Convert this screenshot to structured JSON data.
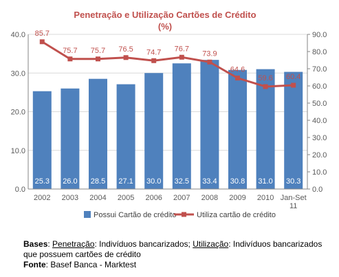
{
  "chart_data": {
    "type": "bar",
    "title": "Penetração e Utilização  Cartões de Crédito",
    "subtitle": "(%)",
    "categories": [
      "2002",
      "2003",
      "2004",
      "2005",
      "2006",
      "2007",
      "2008",
      "2009",
      "2010",
      "Jan-Set 11"
    ],
    "series": [
      {
        "name": "Possui Cartão de crédito",
        "type": "bar",
        "axis": "left",
        "values": [
          25.3,
          26.0,
          28.5,
          27.1,
          30.0,
          32.5,
          33.4,
          30.8,
          31.0,
          30.3
        ],
        "labels": [
          "25.3",
          "26.0",
          "28.5",
          "27.1",
          "30.0",
          "32.5",
          "33.4",
          "30.8",
          "31.0",
          "30.3"
        ]
      },
      {
        "name": "Utiliza cartão de crédito",
        "type": "line",
        "axis": "right",
        "values": [
          85.7,
          75.7,
          75.7,
          76.5,
          74.7,
          76.7,
          73.9,
          64.6,
          59.6,
          60.4
        ],
        "labels": [
          "85.7",
          "75.7",
          "75.7",
          "76.5",
          "74.7",
          "76.7",
          "73.9",
          "64.6",
          "59.6",
          "60.4"
        ]
      }
    ],
    "y_left": {
      "range": [
        0,
        40
      ],
      "ticks": [
        "0.0",
        "10.0",
        "20.0",
        "30.0",
        "40.0"
      ]
    },
    "y_right": {
      "range": [
        0,
        90
      ],
      "ticks": [
        "0.0",
        "10.0",
        "20.0",
        "30.0",
        "40.0",
        "50.0",
        "60.0",
        "70.0",
        "80.0",
        "90.0"
      ]
    },
    "grid": true,
    "legend_position": "bottom",
    "colors": {
      "bar": "#4f81bd",
      "line": "#c0504d",
      "title": "#c0504d",
      "grid": "#d9d9d9",
      "axis_text": "#595959"
    }
  },
  "notes": {
    "bases_label": "Bases",
    "bases_sep": ": ",
    "penetracao_label": "Penetração",
    "penetracao_text": ": Indivíduos bancarizados; ",
    "utilizacao_label": "Utilização",
    "utilizacao_text": ": Indivíduos bancarizados que possuem cartões de crédito",
    "fonte_label": "Fonte",
    "fonte_text": ": Basef Banca - Marktest"
  }
}
